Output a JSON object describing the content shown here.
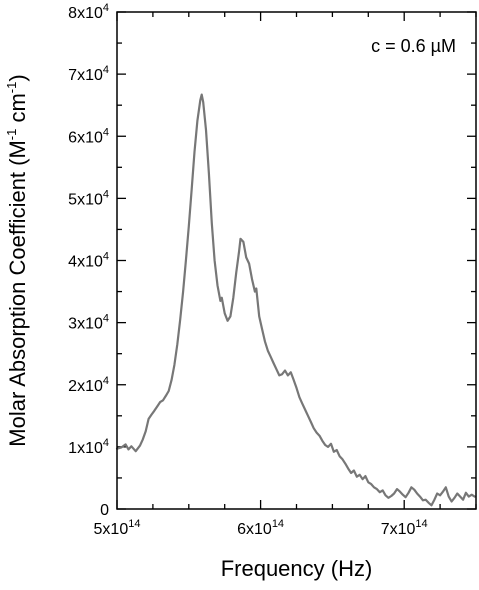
{
  "chart_data": {
    "type": "line",
    "title": "",
    "xlabel": "Frequency (Hz)",
    "ylabel": {
      "main": "Molar Absorption Coefficient (M",
      "sup1": "-1",
      "mid": " cm",
      "sup2": "-1",
      "end": ")"
    },
    "xlim": [
      500000000000000.0,
      750000000000000.0
    ],
    "ylim": [
      0,
      80000
    ],
    "x_ticks": [
      {
        "value": 500000000000000.0,
        "mant": "5x10",
        "exp": "14"
      },
      {
        "value": 600000000000000.0,
        "mant": "6x10",
        "exp": "14"
      },
      {
        "value": 700000000000000.0,
        "mant": "7x10",
        "exp": "14"
      }
    ],
    "x_minor_step": 25000000000000.0,
    "y_ticks": [
      {
        "value": 0,
        "mant": "0",
        "exp": ""
      },
      {
        "value": 10000,
        "mant": "1x10",
        "exp": "4"
      },
      {
        "value": 20000,
        "mant": "2x10",
        "exp": "4"
      },
      {
        "value": 30000,
        "mant": "3x10",
        "exp": "4"
      },
      {
        "value": 40000,
        "mant": "4x10",
        "exp": "4"
      },
      {
        "value": 50000,
        "mant": "5x10",
        "exp": "4"
      },
      {
        "value": 60000,
        "mant": "6x10",
        "exp": "4"
      },
      {
        "value": 70000,
        "mant": "7x10",
        "exp": "4"
      },
      {
        "value": 80000,
        "mant": "8x10",
        "exp": "4"
      }
    ],
    "y_minor_step": 5000,
    "annotation": "c = 0.6 µM",
    "grid": false,
    "series": [
      {
        "color": "#777777",
        "points": [
          [
            500000000000000.0,
            9700
          ],
          [
            503000000000000.0,
            9900
          ],
          [
            506000000000000.0,
            10400
          ],
          [
            508000000000000.0,
            9600
          ],
          [
            510000000000000.0,
            10100
          ],
          [
            513000000000000.0,
            9300
          ],
          [
            516000000000000.0,
            10200
          ],
          [
            518000000000000.0,
            11200
          ],
          [
            520000000000000.0,
            12500
          ],
          [
            522000000000000.0,
            14500
          ],
          [
            524000000000000.0,
            15200
          ],
          [
            526000000000000.0,
            15800
          ],
          [
            528000000000000.0,
            16500
          ],
          [
            530000000000000.0,
            17200
          ],
          [
            532000000000000.0,
            17500
          ],
          [
            534000000000000.0,
            18200
          ],
          [
            536000000000000.0,
            19000
          ],
          [
            538000000000000.0,
            20800
          ],
          [
            540000000000000.0,
            23200
          ],
          [
            542000000000000.0,
            26500
          ],
          [
            544000000000000.0,
            30500
          ],
          [
            546000000000000.0,
            35000
          ],
          [
            548000000000000.0,
            40000
          ],
          [
            550000000000000.0,
            45500
          ],
          [
            552000000000000.0,
            51500
          ],
          [
            554000000000000.0,
            57500
          ],
          [
            556000000000000.0,
            62500
          ],
          [
            558000000000000.0,
            65800
          ],
          [
            559000000000000.0,
            66700
          ],
          [
            560000000000000.0,
            65500
          ],
          [
            562000000000000.0,
            61000
          ],
          [
            564000000000000.0,
            54000
          ],
          [
            566000000000000.0,
            46000
          ],
          [
            568000000000000.0,
            40000
          ],
          [
            570000000000000.0,
            36000
          ],
          [
            572000000000000.0,
            33500
          ],
          [
            573000000000000.0,
            34000
          ],
          [
            575000000000000.0,
            31500
          ],
          [
            577000000000000.0,
            30300
          ],
          [
            579000000000000.0,
            31000
          ],
          [
            581000000000000.0,
            34000
          ],
          [
            583000000000000.0,
            38000
          ],
          [
            585000000000000.0,
            41500
          ],
          [
            586000000000000.0,
            43500
          ],
          [
            588000000000000.0,
            43000
          ],
          [
            590000000000000.0,
            40500
          ],
          [
            592000000000000.0,
            39500
          ],
          [
            594000000000000.0,
            37000
          ],
          [
            596000000000000.0,
            35000
          ],
          [
            597000000000000.0,
            35500
          ],
          [
            599000000000000.0,
            31000
          ],
          [
            601000000000000.0,
            29000
          ],
          [
            603000000000000.0,
            27000
          ],
          [
            605000000000000.0,
            25500
          ],
          [
            607000000000000.0,
            24500
          ],
          [
            609000000000000.0,
            23500
          ],
          [
            611000000000000.0,
            22500
          ],
          [
            613000000000000.0,
            21500
          ],
          [
            615000000000000.0,
            21700
          ],
          [
            617000000000000.0,
            22300
          ],
          [
            619000000000000.0,
            21500
          ],
          [
            621000000000000.0,
            22000
          ],
          [
            623000000000000.0,
            20800
          ],
          [
            625000000000000.0,
            19500
          ],
          [
            627000000000000.0,
            18000
          ],
          [
            629000000000000.0,
            17000
          ],
          [
            631000000000000.0,
            16000
          ],
          [
            633000000000000.0,
            15000
          ],
          [
            635000000000000.0,
            14000
          ],
          [
            637000000000000.0,
            13000
          ],
          [
            639000000000000.0,
            12300
          ],
          [
            641000000000000.0,
            11800
          ],
          [
            643000000000000.0,
            11000
          ],
          [
            645000000000000.0,
            10300
          ],
          [
            647000000000000.0,
            10000
          ],
          [
            649000000000000.0,
            10500
          ],
          [
            651000000000000.0,
            9200
          ],
          [
            653000000000000.0,
            9500
          ],
          [
            655000000000000.0,
            8500
          ],
          [
            657000000000000.0,
            8000
          ],
          [
            659000000000000.0,
            7300
          ],
          [
            661000000000000.0,
            6500
          ],
          [
            663000000000000.0,
            5800
          ],
          [
            665000000000000.0,
            6200
          ],
          [
            667000000000000.0,
            5200
          ],
          [
            669000000000000.0,
            5500
          ],
          [
            671000000000000.0,
            4800
          ],
          [
            673000000000000.0,
            5300
          ],
          [
            675000000000000.0,
            4300
          ],
          [
            677000000000000.0,
            4000
          ],
          [
            679000000000000.0,
            3500
          ],
          [
            681000000000000.0,
            3200
          ],
          [
            683000000000000.0,
            2700
          ],
          [
            685000000000000.0,
            3000
          ],
          [
            687000000000000.0,
            2200
          ],
          [
            689000000000000.0,
            1800
          ],
          [
            691000000000000.0,
            2100
          ],
          [
            693000000000000.0,
            2500
          ],
          [
            695000000000000.0,
            3200
          ],
          [
            697000000000000.0,
            2800
          ],
          [
            699000000000000.0,
            2300
          ],
          [
            701000000000000.0,
            1900
          ],
          [
            703000000000000.0,
            2600
          ],
          [
            705000000000000.0,
            3500
          ],
          [
            707000000000000.0,
            3100
          ],
          [
            709000000000000.0,
            2500
          ],
          [
            711000000000000.0,
            2000
          ],
          [
            713000000000000.0,
            1400
          ],
          [
            715000000000000.0,
            1500
          ],
          [
            717000000000000.0,
            1000
          ],
          [
            719000000000000.0,
            600
          ],
          [
            721000000000000.0,
            1500
          ],
          [
            723000000000000.0,
            2500
          ],
          [
            725000000000000.0,
            2200
          ],
          [
            727000000000000.0,
            2800
          ],
          [
            729000000000000.0,
            3500
          ],
          [
            731000000000000.0,
            2000
          ],
          [
            733000000000000.0,
            1200
          ],
          [
            735000000000000.0,
            1800
          ],
          [
            737000000000000.0,
            2500
          ],
          [
            739000000000000.0,
            2000
          ],
          [
            741000000000000.0,
            1500
          ],
          [
            743000000000000.0,
            2600
          ],
          [
            745000000000000.0,
            2000
          ],
          [
            747000000000000.0,
            2300
          ],
          [
            749000000000000.0,
            2000
          ]
        ]
      }
    ]
  }
}
